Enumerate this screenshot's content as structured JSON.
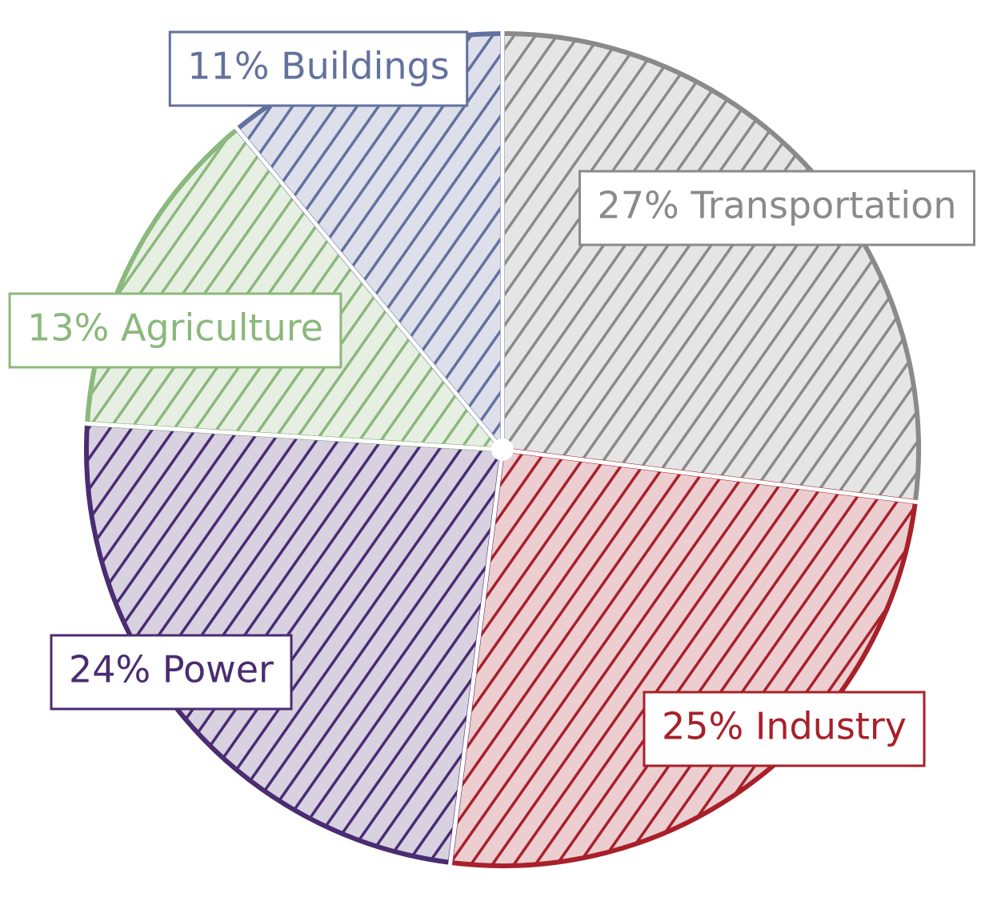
{
  "chart_data": {
    "type": "pie",
    "values": [
      27,
      25,
      24,
      13,
      11
    ],
    "value_labels": [
      "27% Transportation",
      "25% Industry",
      "24% Power",
      "13% Agriculture",
      "11% Buildings"
    ],
    "colors": [
      "#8a8a8a",
      "#a8202a",
      "#4a2c72",
      "#8bb87c",
      "#63719e"
    ]
  }
}
